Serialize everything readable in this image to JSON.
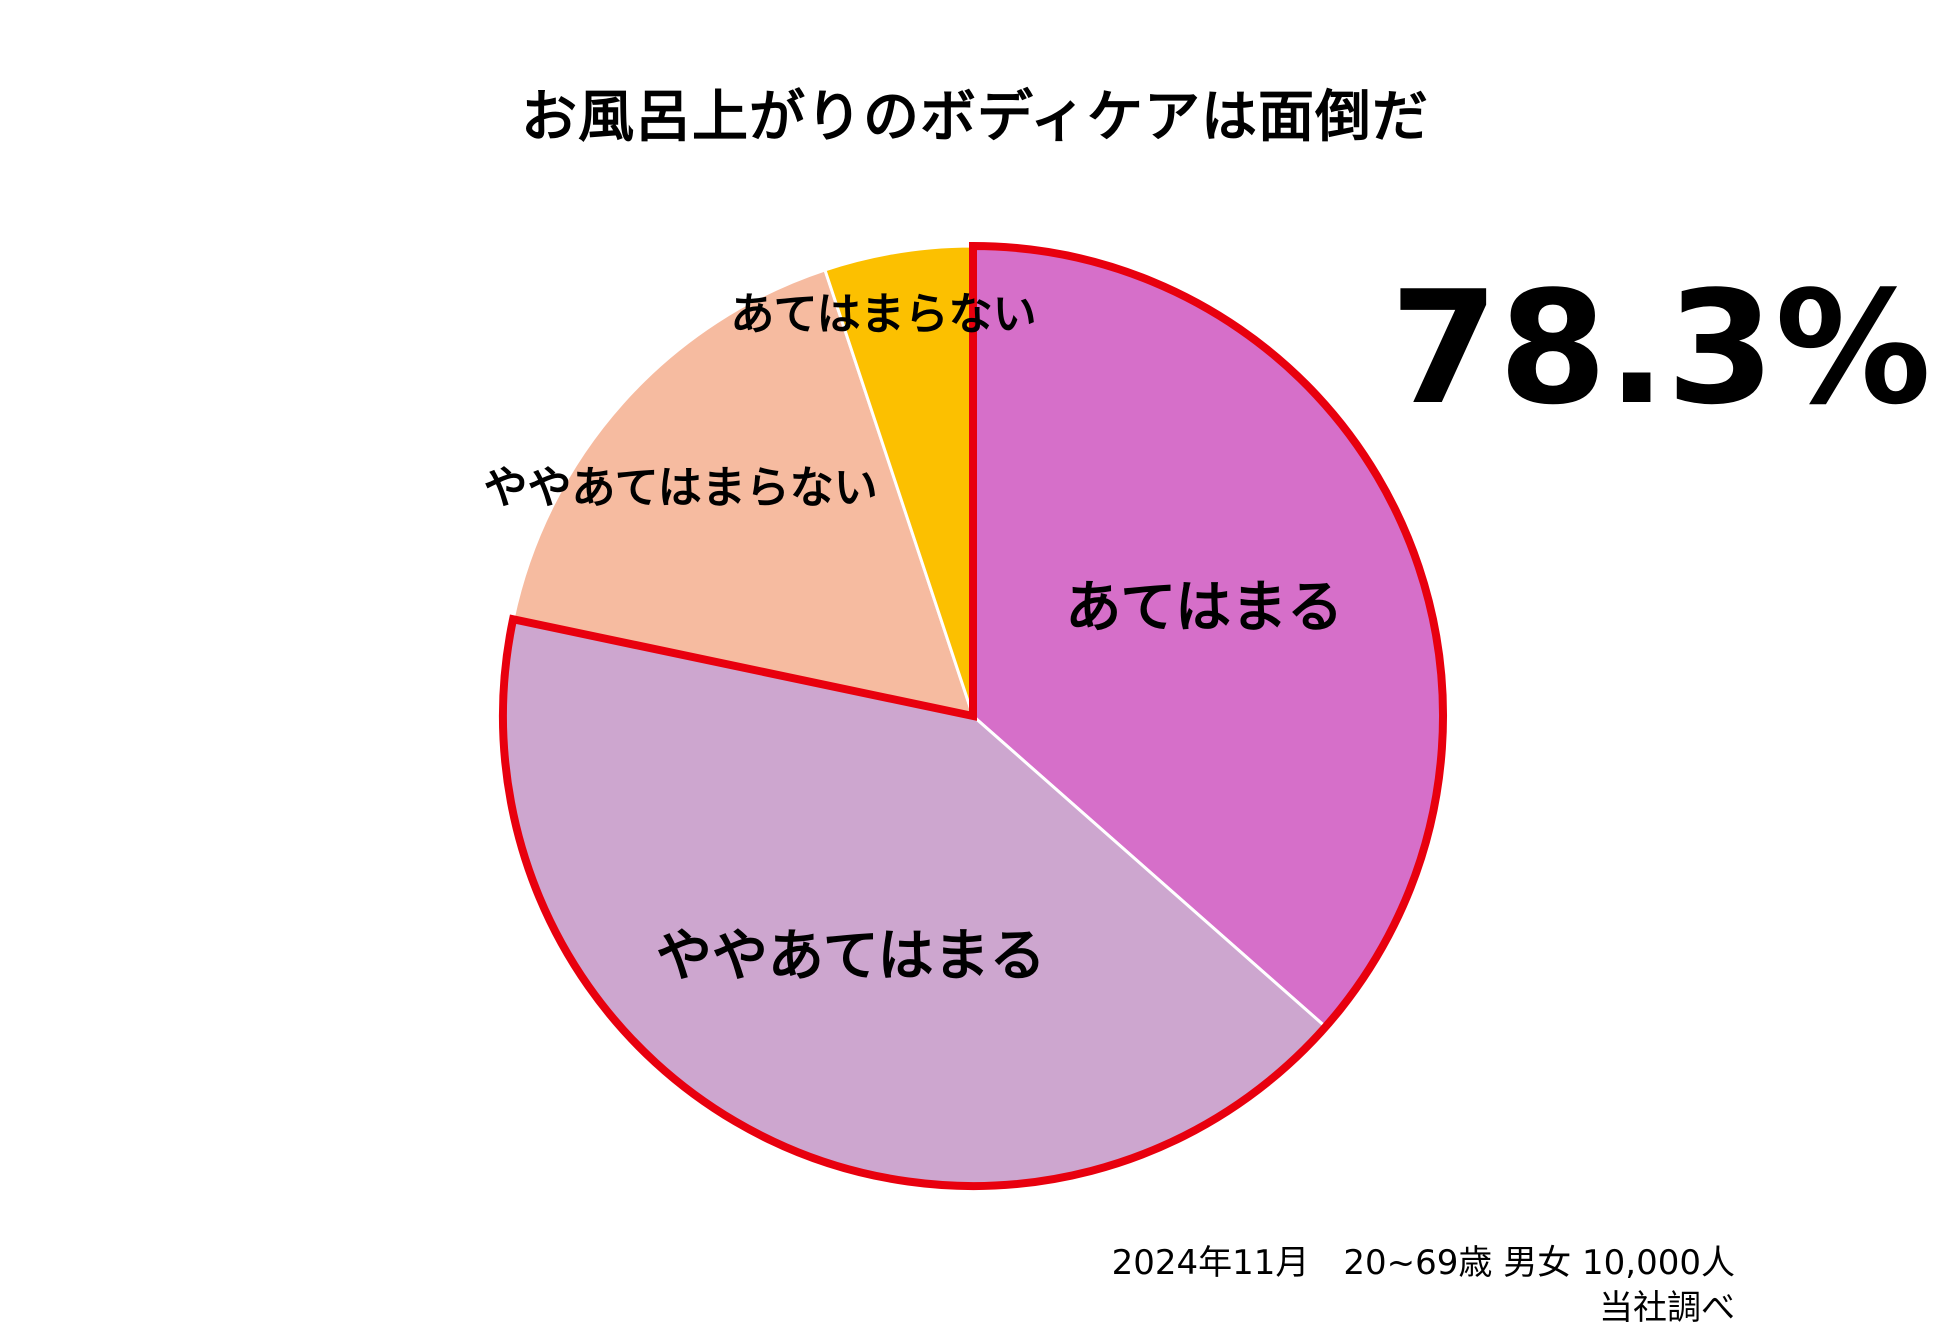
{
  "chart_data": {
    "type": "pie",
    "title": "お風呂上がりのボディケアは面倒だ",
    "categories": [
      "あてはまる",
      "ややあてはまる",
      "ややあてはまらない",
      "あてはまらない"
    ],
    "values": [
      36.5,
      41.8,
      16.6,
      5.1
    ],
    "unit": "%",
    "start_angle_deg": 0,
    "direction": "clockwise",
    "colors": [
      "#D66FC9",
      "#CDA6CF",
      "#F6BBA0",
      "#FCC000"
    ],
    "highlighted": [
      "あてはまる",
      "ややあてはまる"
    ],
    "highlight_color": "#E8000E",
    "highlight_total_label": "78.3%"
  },
  "footer": {
    "survey": "2024年11月　20~69歳 男女 10,000人",
    "source": "当社調べ"
  }
}
